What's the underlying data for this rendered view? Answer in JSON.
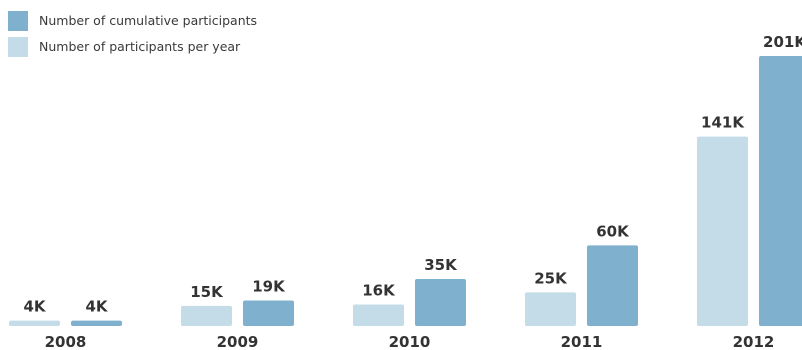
{
  "colors": {
    "per_year": "#c3dce8",
    "cumulative": "#7fb1ce"
  },
  "legend": [
    {
      "key": "cumulative",
      "label": "Number of cumulative participants",
      "color": "#7fb1ce"
    },
    {
      "key": "per_year",
      "label": "Number of participants per year",
      "color": "#c3dce8"
    }
  ],
  "chart_data": {
    "type": "bar",
    "categories": [
      "2008",
      "2009",
      "2010",
      "2011",
      "2012"
    ],
    "series": [
      {
        "name": "Number of participants per year",
        "values": [
          4,
          15,
          16,
          25,
          141
        ],
        "labels": [
          "4K",
          "15K",
          "16K",
          "25K",
          "141K"
        ],
        "color": "#c3dce8"
      },
      {
        "name": "Number of cumulative participants",
        "values": [
          4,
          19,
          35,
          60,
          201
        ],
        "labels": [
          "4K",
          "19K",
          "35K",
          "60K",
          "201K"
        ],
        "color": "#7fb1ce"
      }
    ],
    "title": "",
    "xlabel": "",
    "ylabel": "",
    "unit": "K",
    "grid": false,
    "legend_position": "top-left"
  }
}
